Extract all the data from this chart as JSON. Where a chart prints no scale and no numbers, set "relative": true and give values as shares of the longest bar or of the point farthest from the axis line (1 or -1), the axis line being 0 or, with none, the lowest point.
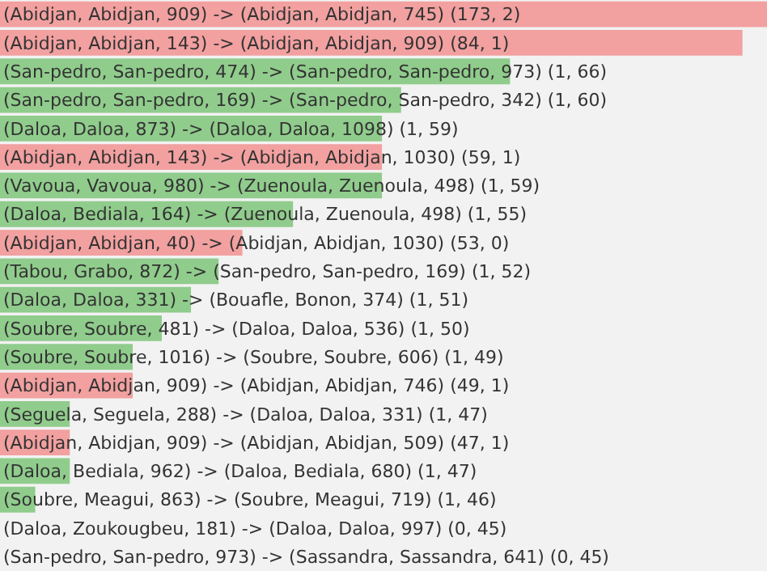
{
  "chart_data": {
    "type": "bar",
    "orientation": "horizontal",
    "relative": true,
    "categories": [
      "(Abidjan, Abidjan, 909) -> (Abidjan, Abidjan, 745) (173, 2)",
      "(Abidjan, Abidjan, 143) -> (Abidjan, Abidjan, 909) (84, 1)",
      "(San-pedro, San-pedro, 474) -> (San-pedro, San-pedro, 973) (1, 66)",
      "(San-pedro, San-pedro, 169) -> (San-pedro, San-pedro, 342) (1, 60)",
      "(Daloa, Daloa, 873) -> (Daloa, Daloa, 1098) (1, 59)",
      "(Abidjan, Abidjan, 143) -> (Abidjan, Abidjan, 1030) (59, 1)",
      "(Vavoua, Vavoua, 980) -> (Zuenoula, Zuenoula, 498) (1, 59)",
      "(Daloa, Bediala, 164) -> (Zuenoula, Zuenoula, 498) (1, 55)",
      "(Abidjan, Abidjan, 40) -> (Abidjan, Abidjan, 1030) (53, 0)",
      "(Tabou, Grabo, 872) -> (San-pedro, San-pedro, 169) (1, 52)",
      "(Daloa, Daloa, 331) -> (Bouafle, Bonon, 374) (1, 51)",
      "(Soubre, Soubre, 481) -> (Daloa, Daloa, 536) (1, 50)",
      "(Soubre, Soubre, 1016) -> (Soubre, Soubre, 606) (1, 49)",
      "(Abidjan, Abidjan, 909) -> (Abidjan, Abidjan, 746) (49, 1)",
      "(Seguela, Seguela, 288) -> (Daloa, Daloa, 331) (1, 47)",
      "(Abidjan, Abidjan, 909) -> (Abidjan, Abidjan, 509) (47, 1)",
      "(Daloa, Bediala, 962) -> (Daloa, Bediala, 680) (1, 47)",
      "(Soubre, Meagui, 863) -> (Soubre, Meagui, 719) (1, 46)",
      "(Daloa, Zoukougbeu, 181) -> (Daloa, Daloa, 997) (0, 45)",
      "(San-pedro, San-pedro, 973) -> (Sassandra, Sassandra, 641) (0, 45)"
    ],
    "values": [
      1,
      0.968,
      0.665,
      0.523,
      0.498,
      0.498,
      0.498,
      0.382,
      0.316,
      0.285,
      0.249,
      0.211,
      0.173,
      0.173,
      0.091,
      0.091,
      0.091,
      0.046,
      0,
      0
    ],
    "colors": [
      "#f2a0a0",
      "#f2a0a0",
      "#90cc8c",
      "#90cc8c",
      "#90cc8c",
      "#f2a0a0",
      "#90cc8c",
      "#90cc8c",
      "#f2a0a0",
      "#90cc8c",
      "#90cc8c",
      "#90cc8c",
      "#90cc8c",
      "#f2a0a0",
      "#90cc8c",
      "#f2a0a0",
      "#90cc8c",
      "#90cc8c",
      "#90cc8c",
      "#90cc8c"
    ]
  }
}
